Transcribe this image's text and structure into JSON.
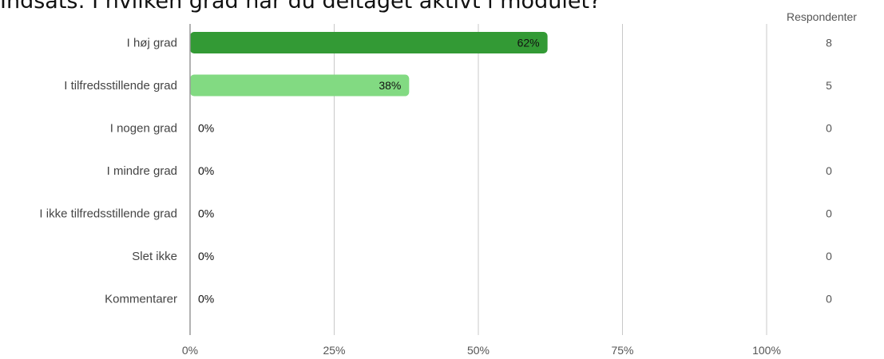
{
  "title": "Indsats: I hvilken grad har du deltaget aktivt i modulet?",
  "respondents_header": "Respondenter",
  "colors": {
    "primary": "#339a35",
    "secondary": "#82da82",
    "grid": "#c8c8c8",
    "axis": "#999999"
  },
  "chart_data": {
    "type": "bar",
    "orientation": "horizontal",
    "title": "Indsats: I hvilken grad har du deltaget aktivt i modulet?",
    "categories": [
      "I høj grad",
      "I tilfredsstillende grad",
      "I nogen grad",
      "I mindre grad",
      "I ikke tilfredsstillende grad",
      "Slet ikke",
      "Kommentarer"
    ],
    "values": [
      62,
      38,
      0,
      0,
      0,
      0,
      0
    ],
    "value_labels": [
      "62%",
      "38%",
      "0%",
      "0%",
      "0%",
      "0%",
      "0%"
    ],
    "respondents": [
      "8",
      "5",
      "0",
      "0",
      "0",
      "0",
      "0"
    ],
    "xlim": [
      0,
      100
    ],
    "x_ticks": [
      0,
      25,
      50,
      75,
      100
    ],
    "x_tick_labels": [
      "0%",
      "25%",
      "50%",
      "75%",
      "100%"
    ],
    "grid": true,
    "bar_colors": [
      "#339a35",
      "#82da82",
      "#339a35",
      "#339a35",
      "#339a35",
      "#339a35",
      "#339a35"
    ]
  }
}
